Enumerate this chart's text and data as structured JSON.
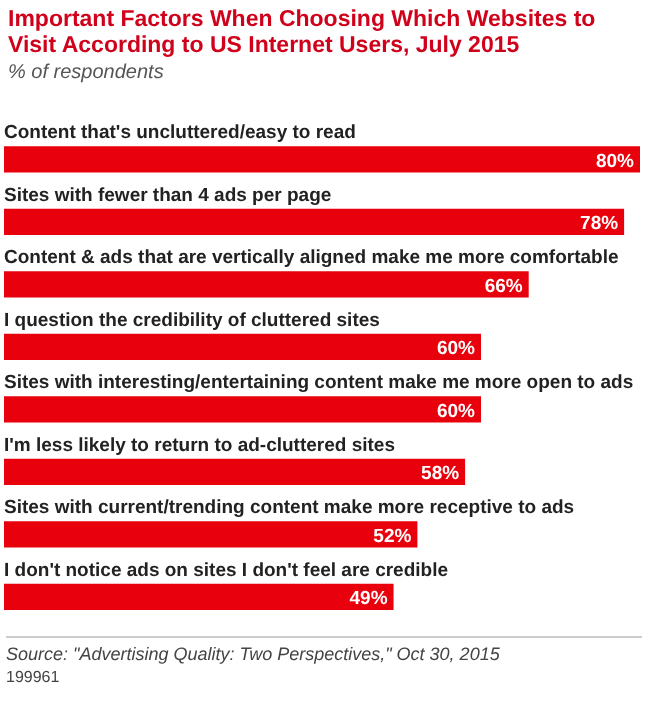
{
  "chart_data": {
    "type": "bar",
    "orientation": "horizontal",
    "title": "Important Factors When Choosing Which Websites to Visit According to US Internet Users, July 2015",
    "subtitle": "% of respondents",
    "categories": [
      "Content that's uncluttered/easy to read",
      "Sites with fewer than 4 ads per page",
      "Content & ads that are vertically aligned make me more comfortable",
      "I question the credibility of cluttered sites",
      "Sites with interesting/entertaining content make me more open to ads",
      "I'm less likely to return to ad-cluttered sites",
      "Sites with current/trending content make more receptive to ads",
      "I don't notice ads on sites I don't feel are credible"
    ],
    "values": [
      80,
      78,
      66,
      60,
      60,
      58,
      52,
      49
    ],
    "value_labels": [
      "80%",
      "78%",
      "66%",
      "60%",
      "60%",
      "58%",
      "52%",
      "49%"
    ],
    "color": "#e8000c",
    "annotations": [
      "Source: \"Advertising Quality: Two Perspectives,\" Oct 30, 2015",
      "199961"
    ]
  }
}
